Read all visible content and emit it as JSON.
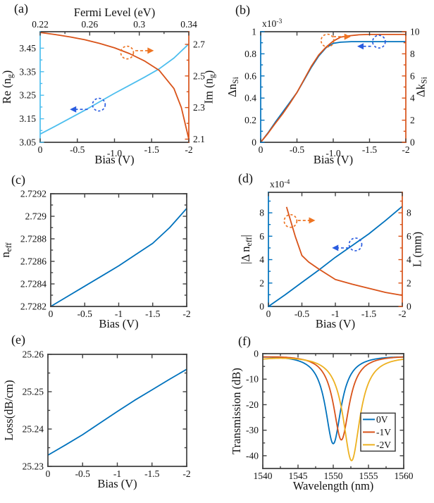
{
  "figure": {
    "background": "#ffffff",
    "colors": {
      "matlab_blue": "#0072BD",
      "matlab_orange": "#D95319",
      "matlab_yellow": "#EDB120",
      "light_blue": "#4DBEEE",
      "annotation_blue": "#2a5ce0",
      "annotation_orange": "#ee7422",
      "spine_dark": "#3f3f3f"
    }
  },
  "chart_data": [
    {
      "panel_label": "(a)",
      "type": "line",
      "top_axis": {
        "label": "Fermi Level (eV)",
        "range": [
          0.22,
          0.34
        ],
        "ticks": [
          0.22,
          0.26,
          0.3,
          0.34
        ],
        "tick_labels": [
          "0.22",
          "0.26",
          "0.3",
          "0.34"
        ],
        "minor": [
          0.24,
          0.28,
          0.32
        ]
      },
      "x_axis": {
        "label": "Bias (V)",
        "range": [
          0,
          -2
        ],
        "ticks": [
          0,
          -0.5,
          -1,
          -1.5,
          -2
        ],
        "tick_labels": [
          "0",
          "-0.5",
          "-1.0",
          "-1.5",
          "-2"
        ],
        "label_dy": [
          0,
          0,
          5,
          0,
          0
        ]
      },
      "left_axis": {
        "label": "Re (n_g)",
        "color": "#4DBEEE",
        "range": [
          3.05,
          3.52
        ],
        "ticks": [
          3.05,
          3.15,
          3.25,
          3.35,
          3.45
        ],
        "tick_labels": [
          "3.05",
          "3.15",
          "3.25",
          "3.35",
          "3.45"
        ],
        "minor": [
          3.1,
          3.2,
          3.3,
          3.4
        ]
      },
      "right_axis": {
        "label": "Im (n_g)",
        "color": "#D95319",
        "range": [
          2.08,
          2.78
        ],
        "ticks": [
          2.1,
          2.3,
          2.5,
          2.7
        ],
        "tick_labels": [
          "2.1",
          "2.3",
          "2.5",
          "2.7"
        ],
        "minor": [
          2.2,
          2.4,
          2.6
        ]
      },
      "series": [
        {
          "name": "Re(ng)",
          "axis": "left",
          "color": "#4DBEEE",
          "x": [
            0,
            -0.2,
            -0.4,
            -0.6,
            -0.8,
            -1,
            -1.2,
            -1.4,
            -1.6,
            -1.8,
            -2
          ],
          "y": [
            3.085,
            3.118,
            3.152,
            3.186,
            3.222,
            3.258,
            3.292,
            3.326,
            3.362,
            3.408,
            3.468
          ]
        },
        {
          "name": "Im(ng)",
          "axis": "right",
          "color": "#D95319",
          "x": [
            0,
            -0.2,
            -0.4,
            -0.6,
            -0.8,
            -1,
            -1.2,
            -1.4,
            -1.6,
            -1.8,
            -1.9,
            -2
          ],
          "y": [
            2.775,
            2.762,
            2.747,
            2.729,
            2.706,
            2.678,
            2.642,
            2.596,
            2.536,
            2.42,
            2.3,
            2.1
          ]
        }
      ],
      "annotations": [
        {
          "color": "#2a5ce0",
          "axis": "left",
          "circle": [
            -0.79,
            3.21
          ],
          "arrow_from": [
            -0.64,
            3.19
          ],
          "arrow_to": [
            -0.4,
            3.19
          ]
        },
        {
          "color": "#ee7422",
          "axis": "right",
          "circle": [
            -1.17,
            2.648
          ],
          "arrow_from": [
            -1.28,
            2.66
          ],
          "arrow_to": [
            -1.53,
            2.66
          ]
        }
      ]
    },
    {
      "panel_label": "(b)",
      "type": "line",
      "scale_note": "x10^-3",
      "mirror_x": true,
      "x_axis": {
        "label": "Bias (V)",
        "range": [
          0,
          -2
        ],
        "ticks": [
          0,
          -0.5,
          -1,
          -1.5,
          -2
        ],
        "tick_labels": [
          "0",
          "-0.5",
          "-1.0",
          "-1.5",
          "-2"
        ],
        "label_dy": [
          0,
          0,
          5,
          0,
          0
        ]
      },
      "left_axis": {
        "label": "Δn_Si",
        "color": "#0072BD",
        "range": [
          0,
          1
        ],
        "ticks": [
          0,
          0.2,
          0.4,
          0.6,
          0.8,
          1
        ],
        "tick_labels": [
          "0",
          "0.2",
          "0.4",
          "0.6",
          "0.8",
          "1"
        ],
        "minor": [
          0.1,
          0.3,
          0.5,
          0.7,
          0.9
        ]
      },
      "right_axis": {
        "label": "Δk_Si",
        "color": "#D95319",
        "range": [
          0,
          10
        ],
        "ticks": [
          0,
          2,
          4,
          6,
          8,
          10
        ],
        "tick_labels": [
          "0",
          "2",
          "4",
          "6",
          "8",
          "10"
        ],
        "minor": [
          1,
          3,
          5,
          7,
          9
        ]
      },
      "series": [
        {
          "name": "Δn_Si",
          "axis": "left",
          "color": "#0072BD",
          "x": [
            0,
            -0.1,
            -0.2,
            -0.3,
            -0.4,
            -0.5,
            -0.6,
            -0.7,
            -0.8,
            -0.9,
            -1,
            -1.1,
            -1.25,
            -1.5,
            -1.75,
            -2
          ],
          "y": [
            0,
            0.085,
            0.18,
            0.27,
            0.36,
            0.45,
            0.565,
            0.68,
            0.78,
            0.855,
            0.895,
            0.905,
            0.91,
            0.91,
            0.91,
            0.91
          ]
        },
        {
          "name": "Δk_Si",
          "axis": "right",
          "color": "#D95319",
          "x": [
            0,
            -0.1,
            -0.2,
            -0.3,
            -0.4,
            -0.5,
            -0.6,
            -0.7,
            -0.8,
            -0.9,
            -1,
            -1.1,
            -1.2,
            -1.35,
            -1.5,
            -2
          ],
          "y": [
            0,
            0.8,
            1.7,
            2.55,
            3.5,
            4.5,
            5.7,
            6.9,
            7.9,
            8.6,
            9.15,
            9.5,
            9.62,
            9.72,
            9.75,
            9.75
          ]
        }
      ],
      "annotations": [
        {
          "color": "#ee7422",
          "axis": "right",
          "circle": [
            -0.92,
            9.2
          ],
          "arrow_from": [
            -1.0,
            9.55
          ],
          "arrow_to": [
            -1.24,
            9.55
          ]
        },
        {
          "color": "#2a5ce0",
          "axis": "left",
          "circle": [
            -1.63,
            0.91
          ],
          "arrow_from": [
            -1.52,
            0.868
          ],
          "arrow_to": [
            -1.33,
            0.868
          ]
        }
      ]
    },
    {
      "panel_label": "(c)",
      "type": "line",
      "mirror_x": true,
      "mirror_y": true,
      "x_axis": {
        "label": "Bias (V)",
        "range": [
          0,
          -2
        ],
        "ticks": [
          0,
          -0.5,
          -1,
          -1.5,
          -2
        ],
        "tick_labels": [
          "0",
          "-0.5",
          "-1",
          "-1.5",
          "-2"
        ]
      },
      "left_axis": {
        "label": "n_eff",
        "range": [
          2.7282,
          2.7292
        ],
        "ticks": [
          2.7282,
          2.7284,
          2.7286,
          2.7288,
          2.729,
          2.7292
        ],
        "tick_labels": [
          "2.7282",
          "2.7284",
          "2.7286",
          "2.7288",
          "2.729",
          "2.7292"
        ],
        "minor": [
          2.7283,
          2.7285,
          2.7287,
          2.7289,
          2.7291
        ]
      },
      "series": [
        {
          "name": "n_eff",
          "axis": "left",
          "color": "#0072BD",
          "x": [
            0,
            -0.25,
            -0.5,
            -0.75,
            -1,
            -1.25,
            -1.5,
            -1.75,
            -2
          ],
          "y": [
            2.7282,
            2.72829,
            2.72838,
            2.72847,
            2.72856,
            2.72866,
            2.72876,
            2.7289,
            2.72907
          ]
        }
      ]
    },
    {
      "panel_label": "(d)",
      "type": "line",
      "scale_note": "x10^-4",
      "mirror_x": true,
      "x_axis": {
        "label": "Bias (V)",
        "range": [
          0,
          -2
        ],
        "ticks": [
          0,
          -0.5,
          -1,
          -1.5,
          -2
        ],
        "tick_labels": [
          "0",
          "-0.5",
          "-1",
          "-1.5",
          "-2"
        ]
      },
      "left_axis": {
        "label": "|Δ n_eff|",
        "color": "#0072BD",
        "range": [
          0,
          9.75
        ],
        "ticks": [
          0,
          2,
          4,
          6,
          8
        ],
        "tick_labels": [
          "0",
          "2",
          "4",
          "6",
          "8"
        ],
        "minor": [
          1,
          3,
          5,
          7,
          9
        ]
      },
      "right_axis": {
        "label": "L (mm)",
        "color": "#D95319",
        "range": [
          0,
          9.75
        ],
        "ticks": [
          0,
          2,
          4,
          6,
          8
        ],
        "tick_labels": [
          "0",
          "2",
          "4",
          "6",
          "8"
        ],
        "minor": [
          1,
          3,
          5,
          7,
          9
        ]
      },
      "series": [
        {
          "name": "|Δn_eff|",
          "axis": "left",
          "color": "#0072BD",
          "x": [
            0,
            -0.25,
            -0.5,
            -0.75,
            -1,
            -1.25,
            -1.5,
            -1.75,
            -2
          ],
          "y": [
            0,
            1.0,
            2.05,
            3.1,
            4.2,
            5.2,
            6.2,
            7.35,
            8.55
          ]
        },
        {
          "name": "L",
          "axis": "right",
          "color": "#D95319",
          "x": [
            -0.27,
            -0.4,
            -0.5,
            -0.6,
            -0.75,
            -1,
            -1.25,
            -1.5,
            -1.75,
            -2
          ],
          "y": [
            8.5,
            6.0,
            4.35,
            3.8,
            3.2,
            2.3,
            1.9,
            1.55,
            1.2,
            0.95
          ]
        }
      ],
      "annotations": [
        {
          "color": "#ee7422",
          "axis": "left",
          "circle": [
            -0.33,
            7.3
          ],
          "arrow_from": [
            -0.44,
            7.35
          ],
          "arrow_to": [
            -0.7,
            7.35
          ]
        },
        {
          "color": "#2a5ce0",
          "axis": "left",
          "circle": [
            -1.3,
            5.3
          ],
          "arrow_from": [
            -1.2,
            5.0
          ],
          "arrow_to": [
            -0.95,
            5.0
          ]
        }
      ]
    },
    {
      "panel_label": "(e)",
      "type": "line",
      "mirror_x": true,
      "mirror_y": true,
      "x_axis": {
        "label": "Bias (V)",
        "range": [
          0,
          -2
        ],
        "ticks": [
          0,
          -0.5,
          -1,
          -1.5,
          -2
        ],
        "tick_labels": [
          "0",
          "-0.5",
          "-1",
          "-1.5",
          "-2"
        ]
      },
      "left_axis": {
        "label": "Loss(dB/cm)",
        "range": [
          25.23,
          25.26
        ],
        "ticks": [
          25.23,
          25.24,
          25.25,
          25.26
        ],
        "tick_labels": [
          "25.23",
          "25.24",
          "25.25",
          "25.26"
        ],
        "minor": [
          25.235,
          25.245,
          25.255
        ]
      },
      "series": [
        {
          "name": "Loss",
          "axis": "left",
          "color": "#0072BD",
          "x": [
            0,
            -0.25,
            -0.5,
            -0.75,
            -1,
            -1.25,
            -1.5,
            -1.75,
            -2
          ],
          "y": [
            25.233,
            25.2357,
            25.2385,
            25.2416,
            25.2447,
            25.2477,
            25.2505,
            25.2533,
            25.256
          ]
        }
      ]
    },
    {
      "panel_label": "(f)",
      "type": "line",
      "mirror_x": true,
      "mirror_y": true,
      "x_axis": {
        "label": "Wavelength (nm)",
        "range": [
          1540,
          1560
        ],
        "ticks": [
          1540,
          1545,
          1550,
          1555,
          1560
        ],
        "tick_labels": [
          "1540",
          "1545",
          "1550",
          "1555",
          "1560"
        ],
        "minor": [
          1542.5,
          1547.5,
          1552.5,
          1557.5
        ]
      },
      "left_axis": {
        "label": "Transmission (dB)",
        "range": [
          -45,
          0
        ],
        "ticks": [
          0,
          -10,
          -20,
          -30,
          -40
        ],
        "tick_labels": [
          "0",
          "-10",
          "-20",
          "-30",
          "-40"
        ],
        "minor": [
          -5,
          -15,
          -25,
          -35
        ]
      },
      "series": [
        {
          "name": "0V",
          "axis": "left",
          "color": "#0072BD",
          "lorentzian": {
            "center_nm": 1550.0,
            "depth_db": -35,
            "width_nm": 1.35,
            "fsr_nm": 20
          }
        },
        {
          "name": "-1V",
          "axis": "left",
          "color": "#D95319",
          "lorentzian": {
            "center_nm": 1551.15,
            "depth_db": -33.5,
            "width_nm": 1.35,
            "fsr_nm": 20
          }
        },
        {
          "name": "-2V",
          "axis": "left",
          "color": "#EDB120",
          "lorentzian": {
            "center_nm": 1552.6,
            "depth_db": -41.5,
            "width_nm": 1.45,
            "fsr_nm": 20
          }
        }
      ],
      "legend": {
        "entries": [
          {
            "label": "0V",
            "color": "#0072BD"
          },
          {
            "label": "-1V",
            "color": "#D95319"
          },
          {
            "label": "-2V",
            "color": "#EDB120"
          }
        ],
        "x": [
          1553.9,
          1558.8
        ],
        "y": [
          -23.3,
          -38.2
        ]
      }
    }
  ]
}
